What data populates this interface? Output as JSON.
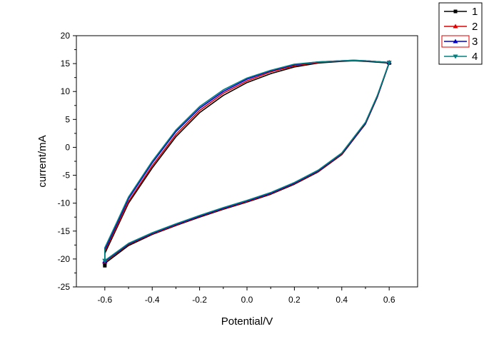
{
  "chart_data": {
    "type": "line",
    "title": "",
    "xlabel": "Potential/V",
    "ylabel": "current/mA",
    "xlim": [
      -0.72,
      0.72
    ],
    "ylim": [
      -25,
      20
    ],
    "x_ticks": [
      -0.6,
      -0.4,
      -0.2,
      0.0,
      0.2,
      0.4,
      0.6
    ],
    "x_tick_labels": [
      "-0.6",
      "-0.4",
      "-0.2",
      "0.0",
      "0.2",
      "0.4",
      "0.6"
    ],
    "y_ticks": [
      -25,
      -20,
      -15,
      -10,
      -5,
      0,
      5,
      10,
      15,
      20
    ],
    "y_tick_labels": [
      "-25",
      "-20",
      "-15",
      "-10",
      "-5",
      "0",
      "5",
      "10",
      "15",
      "20"
    ],
    "grid": false,
    "legend_position": "outside top-right",
    "series": [
      {
        "name": "1",
        "color": "#000000",
        "marker": "square",
        "x": [
          -0.6,
          -0.5,
          -0.4,
          -0.3,
          -0.2,
          -0.1,
          0.0,
          0.1,
          0.2,
          0.3,
          0.4,
          0.5,
          0.55,
          0.6,
          0.6,
          0.5,
          0.45,
          0.4,
          0.3,
          0.2,
          0.1,
          0.0,
          -0.1,
          -0.2,
          -0.3,
          -0.4,
          -0.5,
          -0.55,
          -0.6,
          -0.6
        ],
        "y": [
          -20.8,
          -17.6,
          -15.6,
          -14.0,
          -12.5,
          -11.1,
          -9.8,
          -8.4,
          -6.6,
          -4.4,
          -1.3,
          4.2,
          9.0,
          15.1,
          15.1,
          15.4,
          15.5,
          15.4,
          15.1,
          14.4,
          13.2,
          11.6,
          9.3,
          6.2,
          1.9,
          -3.7,
          -10.0,
          -14.5,
          -19.0,
          -21.2
        ]
      },
      {
        "name": "2",
        "color": "#e00000",
        "marker": "triangle-up",
        "x": [
          -0.6,
          -0.5,
          -0.4,
          -0.3,
          -0.2,
          -0.1,
          0.0,
          0.1,
          0.2,
          0.3,
          0.4,
          0.5,
          0.55,
          0.6,
          0.6,
          0.5,
          0.45,
          0.4,
          0.3,
          0.2,
          0.1,
          0.0,
          -0.1,
          -0.2,
          -0.3,
          -0.4,
          -0.5,
          -0.55,
          -0.6,
          -0.6
        ],
        "y": [
          -20.5,
          -17.4,
          -15.5,
          -13.9,
          -12.4,
          -11.0,
          -9.7,
          -8.3,
          -6.5,
          -4.3,
          -1.2,
          4.3,
          9.1,
          15.2,
          15.2,
          15.5,
          15.5,
          15.5,
          15.2,
          14.6,
          13.5,
          11.9,
          9.7,
          6.6,
          2.3,
          -3.3,
          -9.7,
          -14.2,
          -18.6,
          -20.5
        ]
      },
      {
        "name": "3",
        "color": "#0000cc",
        "marker": "triangle-up",
        "x": [
          -0.6,
          -0.5,
          -0.4,
          -0.3,
          -0.2,
          -0.1,
          0.0,
          0.1,
          0.2,
          0.3,
          0.4,
          0.5,
          0.55,
          0.6,
          0.6,
          0.5,
          0.45,
          0.4,
          0.3,
          0.2,
          0.1,
          0.0,
          -0.1,
          -0.2,
          -0.3,
          -0.4,
          -0.5,
          -0.55,
          -0.6,
          -0.6
        ],
        "y": [
          -20.4,
          -17.3,
          -15.4,
          -13.8,
          -12.3,
          -10.9,
          -9.6,
          -8.2,
          -6.4,
          -4.2,
          -1.1,
          4.4,
          9.2,
          15.2,
          15.2,
          15.5,
          15.6,
          15.5,
          15.3,
          14.8,
          13.7,
          12.2,
          10.0,
          7.0,
          2.8,
          -2.8,
          -9.2,
          -13.8,
          -18.3,
          -20.4
        ]
      },
      {
        "name": "4",
        "color": "#008080",
        "marker": "triangle-down",
        "x": [
          -0.6,
          -0.5,
          -0.4,
          -0.3,
          -0.2,
          -0.1,
          0.0,
          0.1,
          0.2,
          0.3,
          0.4,
          0.5,
          0.55,
          0.6,
          0.6,
          0.5,
          0.45,
          0.4,
          0.3,
          0.2,
          0.1,
          0.0,
          -0.1,
          -0.2,
          -0.3,
          -0.4,
          -0.5,
          -0.55,
          -0.6,
          -0.6
        ],
        "y": [
          -20.3,
          -17.2,
          -15.3,
          -13.7,
          -12.2,
          -10.8,
          -9.5,
          -8.1,
          -6.3,
          -4.1,
          -1.0,
          4.5,
          9.3,
          15.2,
          15.2,
          15.5,
          15.6,
          15.5,
          15.3,
          14.9,
          13.8,
          12.4,
          10.3,
          7.3,
          3.1,
          -2.5,
          -8.9,
          -13.5,
          -18.0,
          -20.3
        ]
      }
    ]
  }
}
